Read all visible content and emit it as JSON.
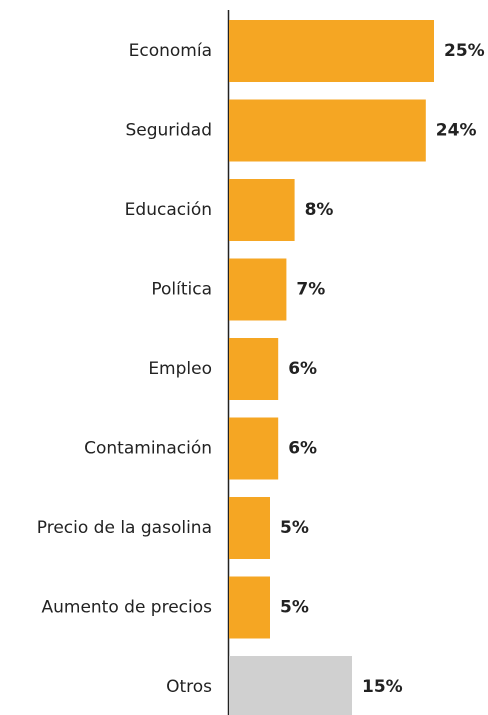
{
  "chart_data": {
    "type": "hbar",
    "categories": [
      "Economía",
      "Seguridad",
      "Educación",
      "Política",
      "Empleo",
      "Contaminación",
      "Precio de la gasolina",
      "Aumento de precios",
      "Otros"
    ],
    "values": [
      25,
      24,
      8,
      7,
      6,
      6,
      5,
      5,
      15
    ],
    "value_labels": [
      "25%",
      "24%",
      "8%",
      "7%",
      "6%",
      "6%",
      "5%",
      "5%",
      "15%"
    ],
    "colors": [
      "#f5a623",
      "#f5a623",
      "#f5a623",
      "#f5a623",
      "#f5a623",
      "#f5a623",
      "#f5a623",
      "#f5a623",
      "#d0d0d0"
    ]
  }
}
